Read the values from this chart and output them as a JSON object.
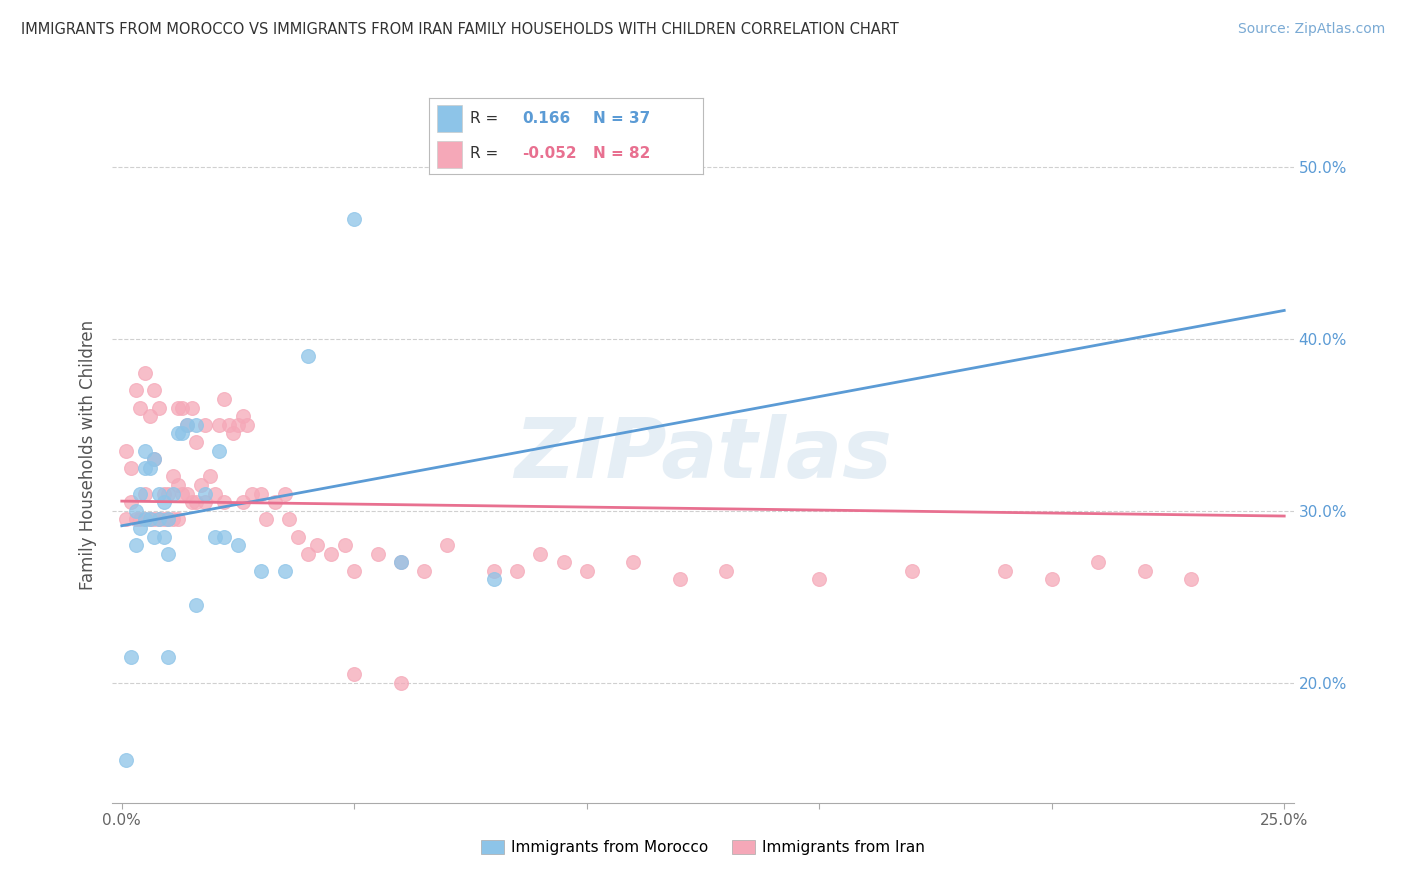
{
  "title": "IMMIGRANTS FROM MOROCCO VS IMMIGRANTS FROM IRAN FAMILY HOUSEHOLDS WITH CHILDREN CORRELATION CHART",
  "source": "Source: ZipAtlas.com",
  "ylabel": "Family Households with Children",
  "xlim": [
    -0.002,
    0.252
  ],
  "ylim": [
    0.13,
    0.535
  ],
  "morocco_color": "#8DC4E8",
  "iran_color": "#F5A8B8",
  "morocco_line_color": "#5B9BD5",
  "iran_line_color": "#E87090",
  "morocco_R": 0.166,
  "morocco_N": 37,
  "iran_R": -0.052,
  "iran_N": 82,
  "background_color": "#ffffff",
  "grid_color": "#d0d0d0",
  "watermark": "ZIPatlas",
  "morocco_x": [
    0.001,
    0.002,
    0.003,
    0.003,
    0.004,
    0.004,
    0.005,
    0.005,
    0.005,
    0.006,
    0.006,
    0.007,
    0.007,
    0.008,
    0.008,
    0.009,
    0.009,
    0.01,
    0.01,
    0.011,
    0.012,
    0.013,
    0.014,
    0.016,
    0.018,
    0.02,
    0.022,
    0.025,
    0.03,
    0.035,
    0.04,
    0.05,
    0.06,
    0.08,
    0.01,
    0.016,
    0.021
  ],
  "morocco_y": [
    0.155,
    0.215,
    0.28,
    0.3,
    0.29,
    0.31,
    0.325,
    0.335,
    0.295,
    0.325,
    0.295,
    0.33,
    0.285,
    0.31,
    0.295,
    0.305,
    0.285,
    0.295,
    0.275,
    0.31,
    0.345,
    0.345,
    0.35,
    0.35,
    0.31,
    0.285,
    0.285,
    0.28,
    0.265,
    0.265,
    0.39,
    0.47,
    0.27,
    0.26,
    0.215,
    0.245,
    0.335
  ],
  "iran_x": [
    0.001,
    0.001,
    0.002,
    0.002,
    0.003,
    0.003,
    0.004,
    0.004,
    0.005,
    0.005,
    0.005,
    0.006,
    0.006,
    0.007,
    0.007,
    0.007,
    0.008,
    0.008,
    0.009,
    0.009,
    0.01,
    0.01,
    0.011,
    0.011,
    0.012,
    0.012,
    0.012,
    0.013,
    0.013,
    0.014,
    0.014,
    0.015,
    0.015,
    0.016,
    0.016,
    0.017,
    0.018,
    0.018,
    0.019,
    0.02,
    0.021,
    0.022,
    0.022,
    0.023,
    0.024,
    0.025,
    0.026,
    0.026,
    0.027,
    0.028,
    0.03,
    0.031,
    0.033,
    0.035,
    0.036,
    0.038,
    0.04,
    0.042,
    0.045,
    0.048,
    0.05,
    0.055,
    0.06,
    0.065,
    0.07,
    0.08,
    0.085,
    0.09,
    0.095,
    0.1,
    0.11,
    0.12,
    0.13,
    0.15,
    0.17,
    0.19,
    0.2,
    0.21,
    0.22,
    0.23,
    0.05,
    0.06
  ],
  "iran_y": [
    0.295,
    0.335,
    0.305,
    0.325,
    0.37,
    0.295,
    0.36,
    0.295,
    0.38,
    0.31,
    0.295,
    0.355,
    0.295,
    0.37,
    0.33,
    0.295,
    0.36,
    0.295,
    0.31,
    0.295,
    0.31,
    0.295,
    0.32,
    0.295,
    0.36,
    0.315,
    0.295,
    0.36,
    0.31,
    0.35,
    0.31,
    0.36,
    0.305,
    0.34,
    0.305,
    0.315,
    0.35,
    0.305,
    0.32,
    0.31,
    0.35,
    0.365,
    0.305,
    0.35,
    0.345,
    0.35,
    0.355,
    0.305,
    0.35,
    0.31,
    0.31,
    0.295,
    0.305,
    0.31,
    0.295,
    0.285,
    0.275,
    0.28,
    0.275,
    0.28,
    0.265,
    0.275,
    0.27,
    0.265,
    0.28,
    0.265,
    0.265,
    0.275,
    0.27,
    0.265,
    0.27,
    0.26,
    0.265,
    0.26,
    0.265,
    0.265,
    0.26,
    0.27,
    0.265,
    0.26,
    0.205,
    0.2
  ]
}
